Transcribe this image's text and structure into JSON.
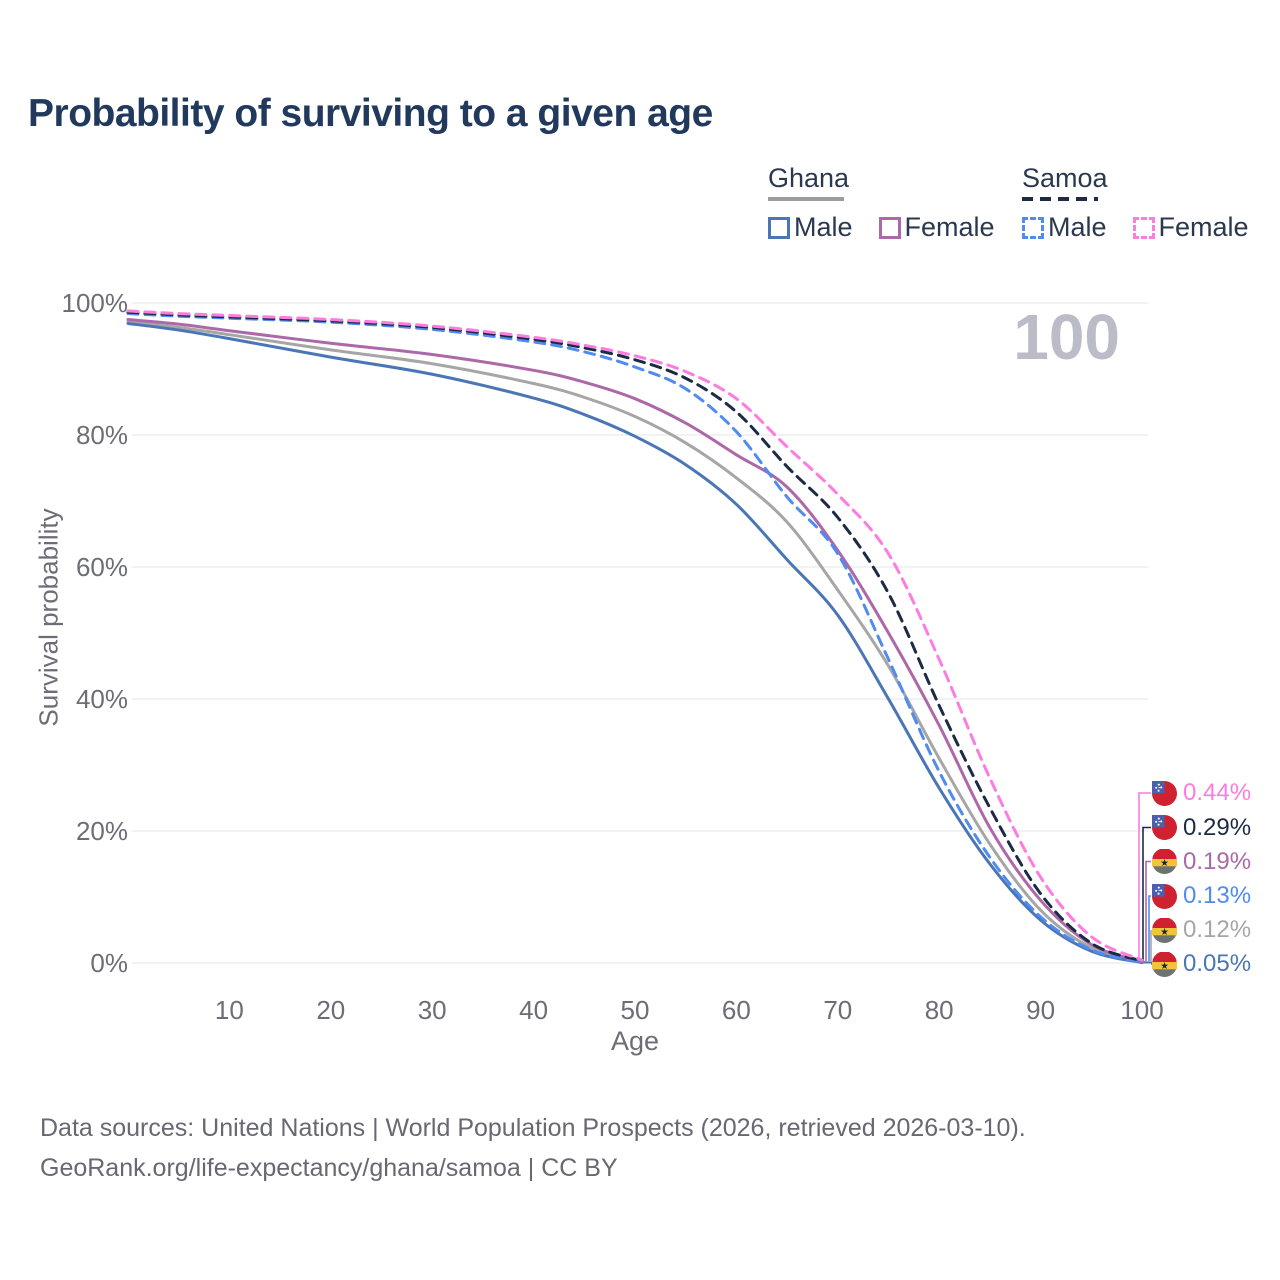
{
  "title": "Probability of surviving to a given age",
  "watermark_hover_age": "100",
  "legend": {
    "groups": [
      {
        "country": "Ghana",
        "line_style": "solid",
        "underline_color": "#9c9c9c",
        "items": [
          {
            "label": "Male",
            "color": "#4a76b5"
          },
          {
            "label": "Female",
            "color": "#ad68a8"
          }
        ]
      },
      {
        "country": "Samoa",
        "line_style": "dashed",
        "underline_color": "#1c2b45",
        "items": [
          {
            "label": "Male",
            "color": "#4f8bf0"
          },
          {
            "label": "Female",
            "color": "#fc7ce0"
          }
        ]
      }
    ]
  },
  "chart_data": {
    "type": "line",
    "title": "Probability of surviving to a given age",
    "xlabel": "Age",
    "ylabel": "Survival probability",
    "xlim": [
      0,
      100
    ],
    "ylim": [
      0,
      100
    ],
    "x_ticks": [
      10,
      20,
      30,
      40,
      50,
      60,
      70,
      80,
      90,
      100
    ],
    "y_ticks": [
      0,
      20,
      40,
      60,
      80,
      100
    ],
    "y_tick_suffix": "%",
    "grid": "horizontal",
    "legend_position": "top-right",
    "x": [
      0,
      5,
      10,
      20,
      30,
      40,
      45,
      50,
      55,
      60,
      65,
      70,
      75,
      80,
      85,
      90,
      95,
      100
    ],
    "series": [
      {
        "name": "Ghana",
        "flag": "ghana",
        "style": "solid",
        "color": "#a6a6a6",
        "values": [
          97.2,
          96.3,
          95.2,
          92.9,
          90.8,
          87.8,
          85.7,
          82.8,
          78.8,
          73.5,
          66.8,
          56.5,
          45.0,
          31.0,
          18.0,
          8.0,
          2.3,
          0.12
        ],
        "end_label": "0.12%"
      },
      {
        "name": "Ghana Male",
        "flag": "ghana",
        "style": "solid",
        "color": "#4a76b5",
        "values": [
          96.9,
          95.9,
          94.6,
          91.8,
          89.2,
          85.6,
          83.1,
          79.8,
          75.5,
          69.5,
          61.1,
          52.7,
          40.0,
          26.5,
          15.0,
          6.5,
          1.8,
          0.05
        ],
        "end_label": "0.05%"
      },
      {
        "name": "Ghana Female",
        "flag": "ghana",
        "style": "solid",
        "color": "#ad68a8",
        "values": [
          97.5,
          96.8,
          95.8,
          93.9,
          92.2,
          89.8,
          88.0,
          85.5,
          81.8,
          77.0,
          72.1,
          62.5,
          50.0,
          36.0,
          20.5,
          9.5,
          2.8,
          0.19
        ],
        "end_label": "0.19%"
      },
      {
        "name": "Samoa Male",
        "flag": "samoa",
        "style": "dashed",
        "color": "#4f8bf0",
        "values": [
          98.4,
          98.0,
          97.7,
          97.1,
          96.0,
          94.1,
          92.6,
          90.3,
          87.0,
          80.5,
          70.6,
          62.0,
          46.0,
          29.0,
          16.0,
          7.0,
          2.0,
          0.13
        ],
        "end_label": "0.13%"
      },
      {
        "name": "Samoa",
        "flag": "samoa",
        "style": "dashed",
        "color": "#1c2b45",
        "values": [
          98.6,
          98.2,
          97.9,
          97.3,
          96.3,
          94.5,
          93.2,
          91.4,
          88.6,
          83.5,
          75.2,
          67.5,
          56.0,
          39.0,
          23.5,
          10.5,
          3.0,
          0.29
        ],
        "end_label": "0.29%"
      },
      {
        "name": "Samoa Female",
        "flag": "samoa",
        "style": "dashed",
        "color": "#fc7ce0",
        "values": [
          98.8,
          98.4,
          98.1,
          97.5,
          96.5,
          94.8,
          93.6,
          92.0,
          89.6,
          85.5,
          78.2,
          71.0,
          62.0,
          46.0,
          28.0,
          13.0,
          4.0,
          0.44
        ],
        "end_label": "0.44%"
      }
    ]
  },
  "footer": {
    "line1": "Data sources: United Nations | World Population Prospects (2026, retrieved 2026-03-10).",
    "line2": "GeoRank.org/life-expectancy/ghana/samoa | CC BY"
  }
}
